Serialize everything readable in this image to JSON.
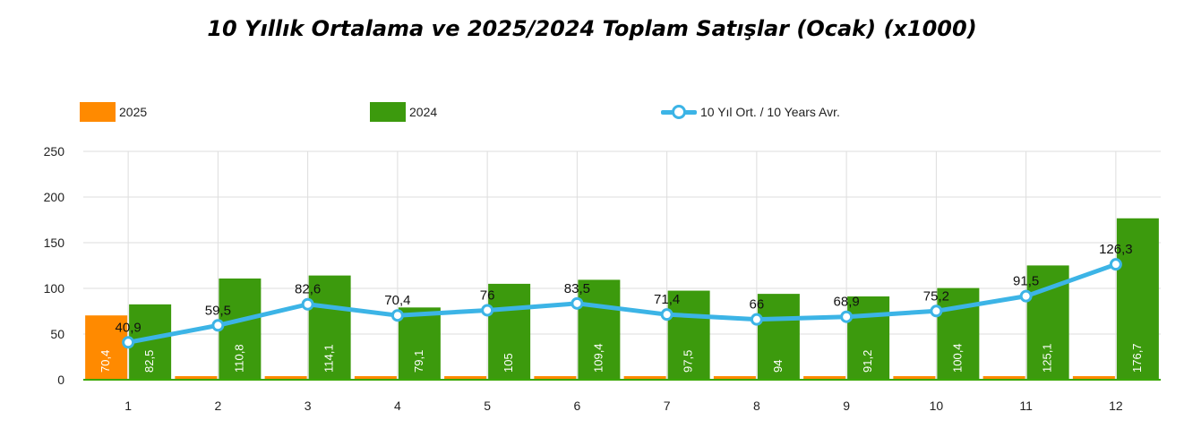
{
  "title": "10 Yıllık Ortalama ve 2025/2024 Toplam Satışlar (Ocak) (x1000)",
  "colors": {
    "s2025": "#ff8a00",
    "s2024": "#3c9a0d",
    "avg": "#3cb4e6",
    "grid": "#dddddd",
    "zero_line": "#39a700"
  },
  "chart_data": {
    "type": "bar",
    "title": "10 Yıllık Ortalama ve 2025/2024 Toplam Satışlar (Ocak) (x1000)",
    "categories": [
      "1",
      "2",
      "3",
      "4",
      "5",
      "6",
      "7",
      "8",
      "9",
      "10",
      "11",
      "12"
    ],
    "ylim": [
      0,
      250
    ],
    "yticks": [
      0,
      50,
      100,
      150,
      200,
      250
    ],
    "grid": true,
    "legend_placement": "top",
    "series": [
      {
        "name": "2025",
        "kind": "bar",
        "values": [
          70.4,
          0,
          0,
          0,
          0,
          0,
          0,
          0,
          0,
          0,
          0,
          0
        ],
        "labels": [
          "70,4",
          "",
          "",
          "",
          "",
          "",
          "",
          "",
          "",
          "",
          "",
          ""
        ]
      },
      {
        "name": "2024",
        "kind": "bar",
        "values": [
          82.5,
          110.8,
          114.1,
          79.1,
          105,
          109.4,
          97.5,
          94,
          91.2,
          100.4,
          125.1,
          176.7
        ],
        "labels": [
          "82,5",
          "110,8",
          "114,1",
          "79,1",
          "105",
          "109,4",
          "97,5",
          "94",
          "91,2",
          "100,4",
          "125,1",
          "176,7"
        ]
      },
      {
        "name": "10 Yıl Ort. / 10 Years Avr.",
        "kind": "line",
        "values": [
          40.9,
          59.5,
          82.6,
          70.4,
          76,
          83.5,
          71.4,
          66,
          68.9,
          75.2,
          91.5,
          126.3
        ],
        "labels": [
          "40,9",
          "59,5",
          "82,6",
          "70,4",
          "76",
          "83,5",
          "71,4",
          "66",
          "68,9",
          "75,2",
          "91,5",
          "126,3"
        ]
      }
    ]
  }
}
